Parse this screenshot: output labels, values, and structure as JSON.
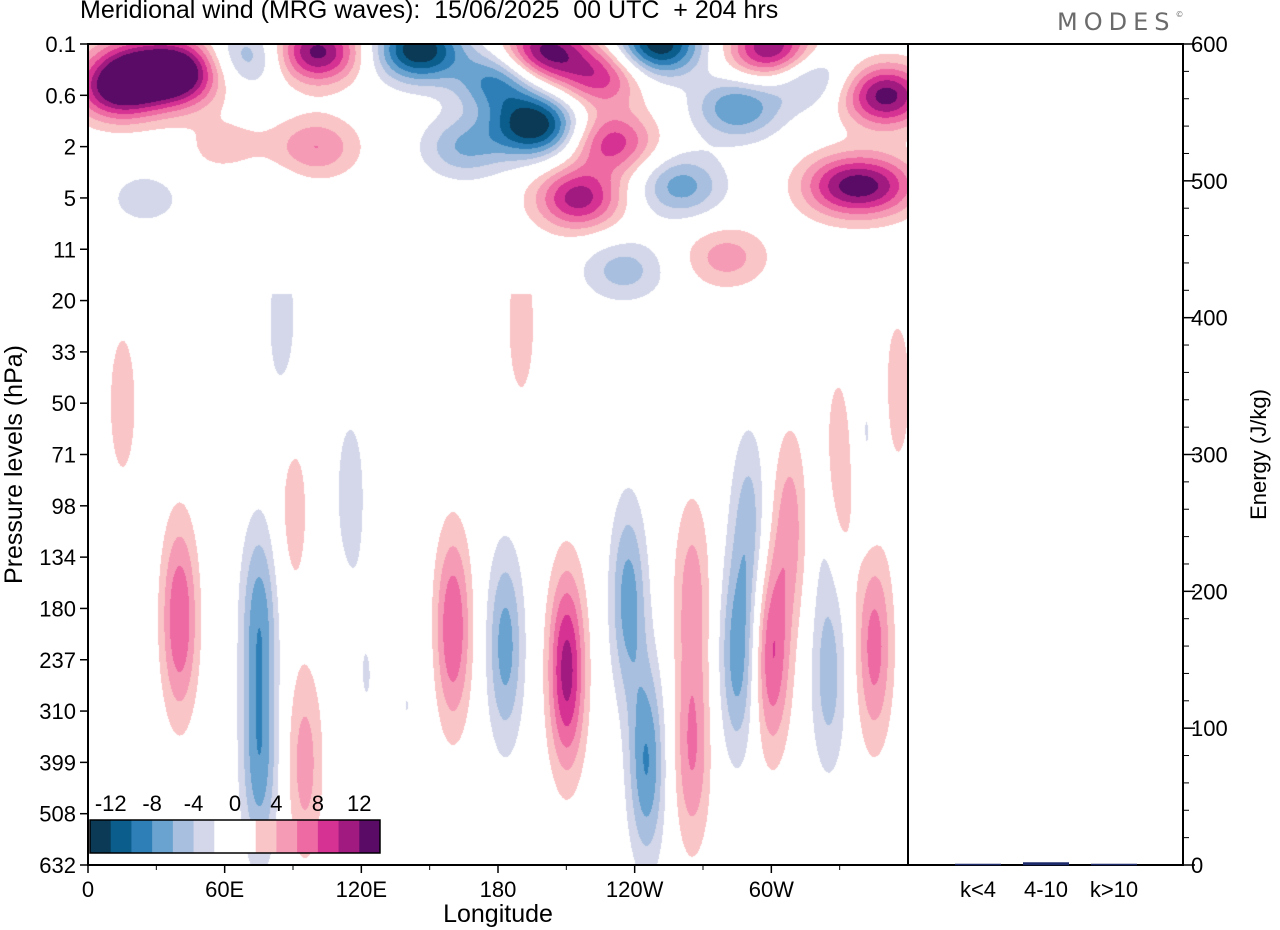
{
  "header": {
    "title": "Meridional wind (MRG waves):  15/06/2025  00 UTC  + 204 hrs",
    "logo": "MODES",
    "logo_mark": "©"
  },
  "chart_data": [
    {
      "type": "heatmap",
      "title": "Meridional wind (MRG waves):  15/06/2025  00 UTC  + 204 hrs",
      "xlabel": "Longitude",
      "ylabel": "Pressure levels (hPa)",
      "x_tick_labels": [
        "0",
        "60E",
        "120E",
        "180",
        "120W",
        "60W"
      ],
      "x_tick_values_deg": [
        0,
        60,
        120,
        180,
        240,
        300
      ],
      "x_range_deg": [
        0,
        360
      ],
      "y_tick_labels": [
        "0.1",
        "0.6",
        "2",
        "5",
        "11",
        "20",
        "33",
        "50",
        "71",
        "98",
        "134",
        "180",
        "237",
        "310",
        "399",
        "508",
        "632"
      ],
      "y_range_hPa": [
        0.1,
        632
      ],
      "colorbar": {
        "tick_labels": [
          "-12",
          "-8",
          "-4",
          "0",
          "4",
          "8",
          "12"
        ],
        "levels": [
          -14,
          -12,
          -10,
          -8,
          -6,
          -4,
          -2,
          0,
          2,
          4,
          6,
          8,
          10,
          12,
          14
        ],
        "colors": [
          "#0a3a55",
          "#0b5d8c",
          "#2e7fb8",
          "#6aa3cf",
          "#a9bfdf",
          "#d3d7e9",
          "#ffffff",
          "#ffffff",
          "#fac5c6",
          "#f59bb6",
          "#ee6aa2",
          "#d63293",
          "#a01a80",
          "#5a0b66"
        ]
      },
      "blobs": [
        {
          "x": 13,
          "y": 0.5,
          "v": 12
        },
        {
          "x": 38,
          "y": 0.35,
          "v": 9
        },
        {
          "x": 18,
          "y": 0.2,
          "v": 7
        },
        {
          "x": 40,
          "y": 0.2,
          "v": 8
        },
        {
          "x": 70,
          "y": 0.15,
          "v": -6
        },
        {
          "x": 100,
          "y": 0.13,
          "v": 13
        },
        {
          "x": 145,
          "y": 0.12,
          "v": -14
        },
        {
          "x": 180,
          "y": 0.35,
          "v": -9
        },
        {
          "x": 200,
          "y": 0.13,
          "v": 13
        },
        {
          "x": 225,
          "y": 0.3,
          "v": 9
        },
        {
          "x": 196,
          "y": 1.2,
          "v": -14
        },
        {
          "x": 250,
          "y": 0.1,
          "v": -14
        },
        {
          "x": 300,
          "y": 0.12,
          "v": 13
        },
        {
          "x": 285,
          "y": 0.8,
          "v": -8
        },
        {
          "x": 350,
          "y": 0.6,
          "v": 13
        },
        {
          "x": 315,
          "y": 0.3,
          "v": -6
        },
        {
          "x": 230,
          "y": 1.8,
          "v": 9
        },
        {
          "x": 215,
          "y": 5,
          "v": 11
        },
        {
          "x": 260,
          "y": 4,
          "v": -7
        },
        {
          "x": 165,
          "y": 2,
          "v": -6
        },
        {
          "x": 330,
          "y": 4,
          "v": 9
        },
        {
          "x": 348,
          "y": 4,
          "v": 8
        },
        {
          "x": 100,
          "y": 2,
          "v": 6
        },
        {
          "x": 60,
          "y": 2,
          "v": 3
        },
        {
          "x": 25,
          "y": 5,
          "v": -3
        },
        {
          "x": 75,
          "y": 5,
          "v": -2
        },
        {
          "x": 235,
          "y": 14,
          "v": -5
        },
        {
          "x": 280,
          "y": 12,
          "v": 5
        },
        {
          "x": 190,
          "y": 25,
          "v": 3
        },
        {
          "x": 85,
          "y": 25,
          "v": -3
        },
        {
          "x": 15,
          "y": 50,
          "v": 3
        },
        {
          "x": 355,
          "y": 45,
          "v": 3
        },
        {
          "x": 330,
          "y": 80,
          "v": 6
        },
        {
          "x": 340,
          "y": 65,
          "v": -3
        },
        {
          "x": 40,
          "y": 190,
          "v": 8
        },
        {
          "x": 75,
          "y": 190,
          "v": -7
        },
        {
          "x": 75,
          "y": 400,
          "v": -7
        },
        {
          "x": 95,
          "y": 400,
          "v": 5
        },
        {
          "x": 90,
          "y": 100,
          "v": 3
        },
        {
          "x": 115,
          "y": 90,
          "v": -3
        },
        {
          "x": 160,
          "y": 200,
          "v": 8
        },
        {
          "x": 183,
          "y": 220,
          "v": -7
        },
        {
          "x": 210,
          "y": 250,
          "v": 11
        },
        {
          "x": 237,
          "y": 170,
          "v": -7
        },
        {
          "x": 245,
          "y": 400,
          "v": -8
        },
        {
          "x": 265,
          "y": 165,
          "v": 5
        },
        {
          "x": 285,
          "y": 235,
          "v": -7
        },
        {
          "x": 290,
          "y": 110,
          "v": -5
        },
        {
          "x": 265,
          "y": 380,
          "v": 6
        },
        {
          "x": 300,
          "y": 230,
          "v": 8
        },
        {
          "x": 308,
          "y": 110,
          "v": 5
        },
        {
          "x": 325,
          "y": 260,
          "v": -5
        },
        {
          "x": 345,
          "y": 220,
          "v": 7
        },
        {
          "x": 325,
          "y": 105,
          "v": -3
        },
        {
          "x": 140,
          "y": 300,
          "v": -2
        },
        {
          "x": 122,
          "y": 260,
          "v": -2
        }
      ]
    },
    {
      "type": "bar",
      "categories": [
        "k<4",
        "4-10",
        "k>10"
      ],
      "values": [
        0,
        2,
        0
      ],
      "ylabel": "Energy (J/kg)",
      "ylim": [
        0,
        600
      ],
      "y_tick_labels": [
        "0",
        "100",
        "200",
        "300",
        "400",
        "500",
        "600"
      ],
      "bar_color": "#1c2a6b"
    }
  ]
}
